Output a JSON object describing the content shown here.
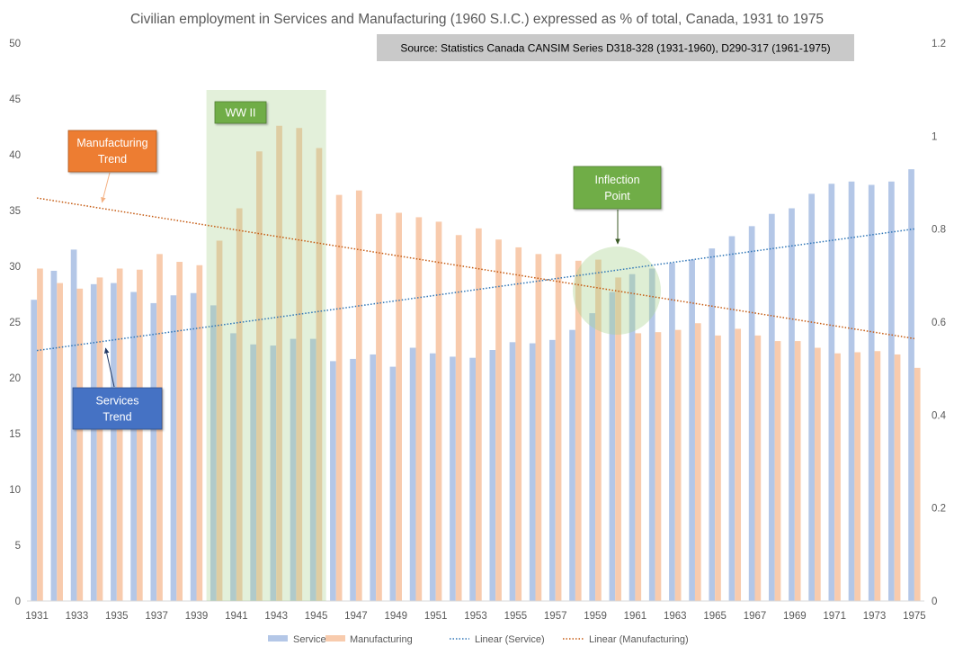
{
  "chart_data": {
    "type": "bar",
    "title": "Civilian employment in Services and Manufacturing (1960 S.I.C.) expressed as % of total, Canada, 1931 to 1975",
    "source": "Source: Statistics Canada CANSIM Series D318-328 (1931-1960), D290-317 (1961-1975)",
    "x": [
      1931,
      1932,
      1933,
      1934,
      1935,
      1936,
      1937,
      1938,
      1939,
      1940,
      1941,
      1942,
      1943,
      1944,
      1945,
      1946,
      1947,
      1948,
      1949,
      1950,
      1951,
      1952,
      1953,
      1954,
      1955,
      1956,
      1957,
      1958,
      1959,
      1960,
      1961,
      1962,
      1963,
      1964,
      1965,
      1966,
      1967,
      1968,
      1969,
      1970,
      1971,
      1972,
      1973,
      1974,
      1975
    ],
    "series": [
      {
        "name": "Service",
        "color": "#b4c7e7",
        "values": [
          27.0,
          29.6,
          31.5,
          28.4,
          28.5,
          27.7,
          26.7,
          27.4,
          27.6,
          26.5,
          24.0,
          23.0,
          22.9,
          23.5,
          23.5,
          21.5,
          21.7,
          22.1,
          21.0,
          22.7,
          22.2,
          21.9,
          21.8,
          22.5,
          23.2,
          23.1,
          23.4,
          24.3,
          25.8,
          27.7,
          29.3,
          29.8,
          30.3,
          30.6,
          31.6,
          32.7,
          33.6,
          34.7,
          35.2,
          36.5,
          37.4,
          37.6,
          37.3,
          37.6,
          38.7
        ]
      },
      {
        "name": "Manufacturing",
        "color": "#f8cbad",
        "values": [
          29.8,
          28.5,
          28.0,
          29.0,
          29.8,
          29.7,
          31.1,
          30.4,
          30.1,
          32.3,
          35.2,
          40.3,
          42.6,
          42.4,
          40.6,
          36.4,
          36.8,
          34.7,
          34.8,
          34.4,
          34.0,
          32.8,
          33.4,
          32.4,
          31.7,
          31.1,
          31.1,
          30.5,
          30.6,
          29.0,
          24.0,
          24.1,
          24.3,
          24.9,
          23.8,
          24.4,
          23.8,
          23.3,
          23.3,
          22.7,
          22.2,
          22.3,
          22.4,
          22.1,
          20.9
        ]
      }
    ],
    "trendlines": [
      {
        "name": "Linear (Service)",
        "series": 0,
        "color": "#2e75b6"
      },
      {
        "name": "Linear (Manufacturing)",
        "series": 1,
        "color": "#c55a11"
      }
    ],
    "ylim": [
      0,
      50
    ],
    "yticks": [
      0,
      5,
      10,
      15,
      20,
      25,
      30,
      35,
      40,
      45,
      50
    ],
    "y2lim": [
      0,
      1.2
    ],
    "y2ticks": [
      0,
      0.2,
      0.4,
      0.6,
      0.8,
      1,
      1.2
    ],
    "grid": false,
    "legend": "bottom",
    "annotations": {
      "ww2": {
        "label": "WW II",
        "years": [
          1940,
          1945
        ],
        "color": "#70ad47"
      },
      "manufacturing_trend": {
        "lines": [
          "Manufacturing",
          "Trend"
        ],
        "color": "#ed7d31"
      },
      "services_trend": {
        "lines": [
          "Services",
          "Trend"
        ],
        "color": "#4472c4"
      },
      "inflection_point": {
        "lines": [
          "Inflection",
          "Point"
        ],
        "color": "#70ad47"
      }
    }
  }
}
